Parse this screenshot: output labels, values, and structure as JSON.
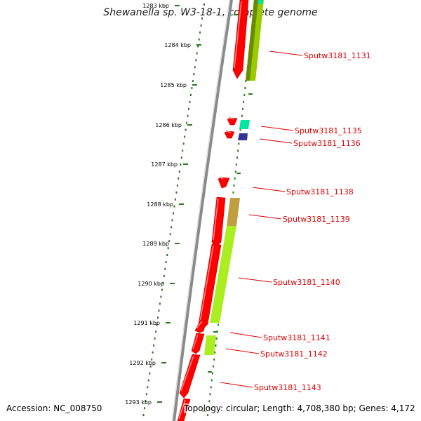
{
  "title": "Shewanella sp. W3-18-1, complete genome",
  "accession_text": "Accession: NC_008750",
  "summary_text": "Topology: circular; Length: 4,708,380 bp; Genes: 4,172",
  "colors": {
    "backbone": "#8a8a8a",
    "tick": "#2a7a1a",
    "forward_gene": "#ff0000",
    "label": "#dd0000"
  },
  "kbp_labels": [
    "1283 kbp",
    "1284 kbp",
    "1285 kbp",
    "1286 kbp",
    "1287 kbp",
    "1288 kbp",
    "1289 kbp",
    "1290 kbp",
    "1291 kbp",
    "1292 kbp",
    "1293 kbp"
  ],
  "gene_labels": [
    "Sputw3181_1131",
    "Sputw3181_1135",
    "Sputw3181_1136",
    "Sputw3181_1138",
    "Sputw3181_1139",
    "Sputw3181_1140",
    "Sputw3181_1141",
    "Sputw3181_1142",
    "Sputw3181_1143"
  ],
  "protein_track_colors": [
    "#99cc00",
    "#00e6a0",
    "#333399",
    "#bfa040",
    "#aaee22",
    "#aaee22"
  ]
}
